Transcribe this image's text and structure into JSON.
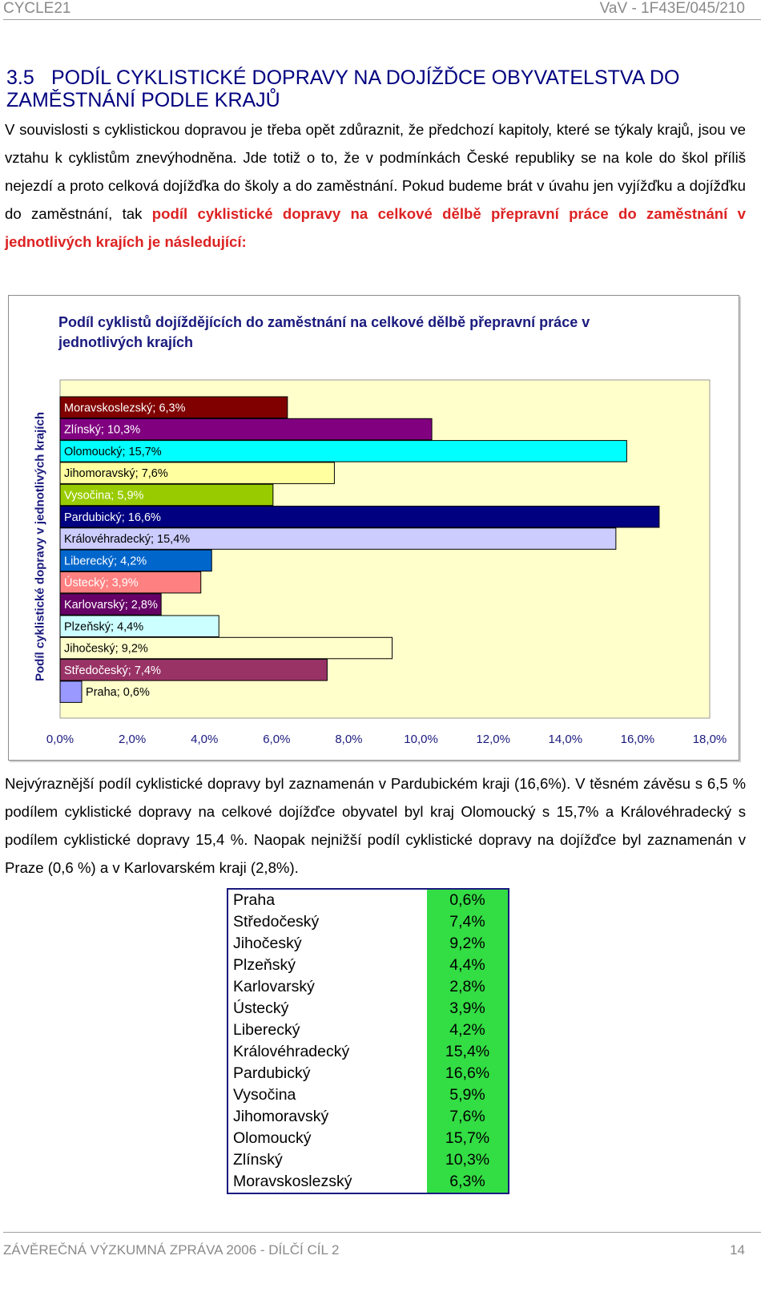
{
  "header": {
    "left": "CYCLE21",
    "right": "VaV - 1F43E/045/210"
  },
  "section": {
    "number": "3.5",
    "title": "PODÍL CYKLISTICKÉ DOPRAVY NA DOJÍŽĎCE OBYVATELSTVA DO ZAMĚSTNÁNÍ PODLE KRAJŮ"
  },
  "intro": {
    "text": "V souvislosti s cyklistickou dopravou je třeba opět zdůraznit, že předchozí kapitoly, které se týkaly krajů, jsou ve vztahu k cyklistům znevýhodněna. Jde totiž o to, že v podmínkách České republiky se na kole do škol příliš nejezdí a proto celková dojížďka do školy a do zaměstnání. Pokud budeme brát v úvahu jen vyjížďku a dojížďku do zaměstnání, tak ",
    "highlight": "podíl cyklistické dopravy na celkové dělbě přepravní práce do zaměstnání v jednotlivých krajích je následující:"
  },
  "chart_data": {
    "type": "bar",
    "orientation": "horizontal",
    "title": "Podíl cyklistů dojíždějících do zaměstnání na celkové dělbě přepravní práce v jednotlivých krajích",
    "ylabel": "Podíl cyklistické dopravy v jednotlivých krajích",
    "xlabel": "",
    "xlim": [
      0,
      18
    ],
    "x_ticks": [
      "0,0%",
      "2,0%",
      "4,0%",
      "6,0%",
      "8,0%",
      "10,0%",
      "12,0%",
      "14,0%",
      "16,0%",
      "18,0%"
    ],
    "grid": false,
    "legend": "none",
    "plot_background": "#ffffcc",
    "bars": [
      {
        "category": "Moravskoslezský",
        "value": 6.3,
        "label": "Moravskoslezský; 6,3%",
        "color": "#800000",
        "label_color": "#ffffff"
      },
      {
        "category": "Zlínský",
        "value": 10.3,
        "label": "Zlínský; 10,3%",
        "color": "#800080",
        "label_color": "#ffffff"
      },
      {
        "category": "Olomoucký",
        "value": 15.7,
        "label": "Olomoucký; 15,7%",
        "color": "#00ffff",
        "label_color": "#000000"
      },
      {
        "category": "Jihomoravský",
        "value": 7.6,
        "label": "Jihomoravský; 7,6%",
        "color": "#ffffa0",
        "label_color": "#000000"
      },
      {
        "category": "Vysočina",
        "value": 5.9,
        "label": "Vysočina; 5,9%",
        "color": "#99cc00",
        "label_color": "#ffffff"
      },
      {
        "category": "Pardubický",
        "value": 16.6,
        "label": "Pardubický; 16,6%",
        "color": "#000080",
        "label_color": "#ffffff"
      },
      {
        "category": "Královéhradecký",
        "value": 15.4,
        "label": "Královéhradecký; 15,4%",
        "color": "#ccccff",
        "label_color": "#000000"
      },
      {
        "category": "Liberecký",
        "value": 4.2,
        "label": "Liberecký; 4,2%",
        "color": "#0066cc",
        "label_color": "#ffffff"
      },
      {
        "category": "Ústecký",
        "value": 3.9,
        "label": "Ústecký; 3,9%",
        "color": "#ff8080",
        "label_color": "#ffffff"
      },
      {
        "category": "Karlovarský",
        "value": 2.8,
        "label": "Karlovarský; 2,8%",
        "color": "#660066",
        "label_color": "#ffffff"
      },
      {
        "category": "Plzeňský",
        "value": 4.4,
        "label": "Plzeňský; 4,4%",
        "color": "#ccffff",
        "label_color": "#000000"
      },
      {
        "category": "Jihočeský",
        "value": 9.2,
        "label": "Jihočeský; 9,2%",
        "color": "#ffffcc",
        "label_color": "#000000"
      },
      {
        "category": "Středočeský",
        "value": 7.4,
        "label": "Středočeský; 7,4%",
        "color": "#993366",
        "label_color": "#ffffff"
      },
      {
        "category": "Praha",
        "value": 0.6,
        "label": "Praha; 0,6%",
        "color": "#9999ff",
        "label_color": "#000000"
      }
    ]
  },
  "summary": {
    "text": "Nejvýraznější podíl cyklistické dopravy byl zaznamenán v Pardubickém kraji (16,6%). V těsném závěsu s 6,5 % podílem cyklistické dopravy na celkové dojížďce obyvatel byl kraj Olomoucký s 15,7% a Královéhradecký s podílem cyklistické dopravy 15,4 %. Naopak nejnižší podíl cyklistické dopravy na dojížďce byl zaznamenán v Praze (0,6 %) a v Karlovarském kraji (2,8%)."
  },
  "table": {
    "rows": [
      {
        "region": "Praha",
        "value": "0,6%"
      },
      {
        "region": "Středočeský",
        "value": "7,4%"
      },
      {
        "region": "Jihočeský",
        "value": "9,2%"
      },
      {
        "region": "Plzeňský",
        "value": "4,4%"
      },
      {
        "region": "Karlovarský",
        "value": "2,8%"
      },
      {
        "region": "Ústecký",
        "value": "3,9%"
      },
      {
        "region": "Liberecký",
        "value": "4,2%"
      },
      {
        "region": "Královéhradecký",
        "value": "15,4%"
      },
      {
        "region": "Pardubický",
        "value": "16,6%"
      },
      {
        "region": "Vysočina",
        "value": "5,9%"
      },
      {
        "region": "Jihomoravský",
        "value": "7,6%"
      },
      {
        "region": "Olomoucký",
        "value": "15,7%"
      },
      {
        "region": "Zlínský",
        "value": "10,3%"
      },
      {
        "region": "Moravskoslezský",
        "value": "6,3%"
      }
    ]
  },
  "footer": {
    "left": "ZÁVĚREČNÁ VÝZKUMNÁ ZPRÁVA 2006 - DÍLČÍ CÍL 2",
    "right": "14"
  }
}
